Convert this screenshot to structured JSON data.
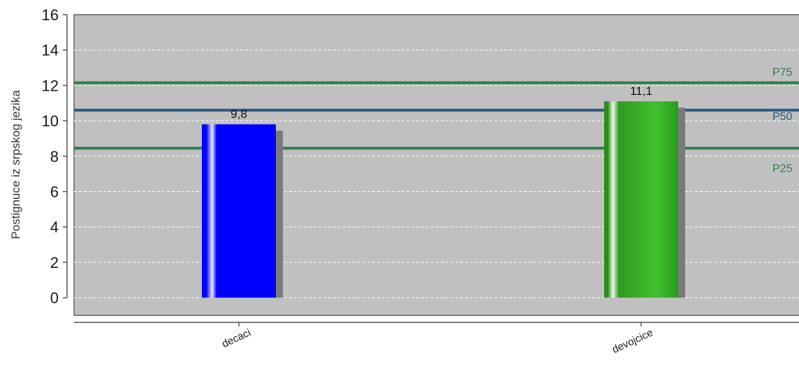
{
  "chart_data": {
    "type": "bar",
    "ylabel": "Postignuce iz srpskog jezika",
    "xlabel": "",
    "title": "",
    "ylim": [
      -1,
      16
    ],
    "yticks": [
      0,
      2,
      4,
      6,
      8,
      10,
      12,
      14,
      16
    ],
    "categories": [
      "decaci",
      "devojcice"
    ],
    "values": [
      9.8,
      11.1
    ],
    "value_labels": [
      "9,8",
      "11,1"
    ],
    "bar_colors": [
      "#0000ff",
      "#33aa22"
    ],
    "reference_lines": [
      {
        "name": "P75",
        "value": 12.15,
        "color": "#2e7d4a"
      },
      {
        "name": "P50",
        "value": 10.6,
        "color": "#2b5a80"
      },
      {
        "name": "P25",
        "value": 8.45,
        "color": "#2e7d4a"
      }
    ],
    "grid": true,
    "panel_background": "#c0c0c0"
  }
}
